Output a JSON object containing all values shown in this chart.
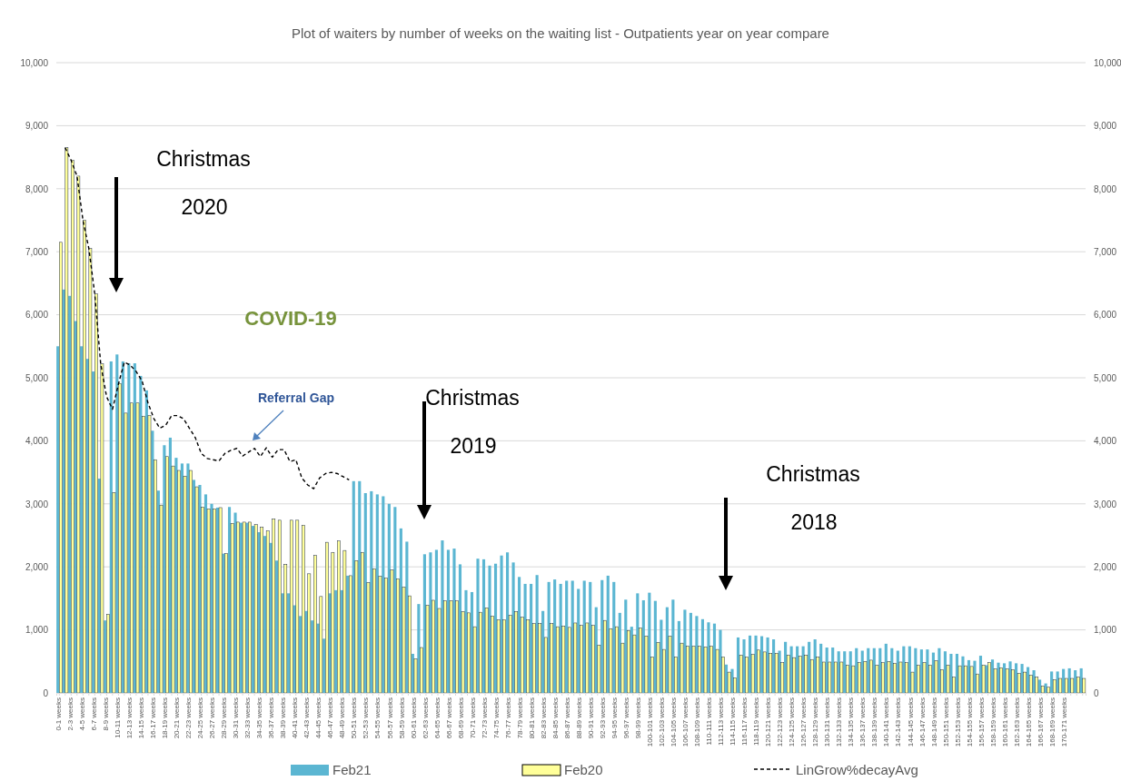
{
  "chart_data": {
    "type": "bar",
    "title": "Plot of waiters by number of weeks on the waiting list - Outpatients year on year compare",
    "categories": [
      "0-1 weeks",
      null,
      "2-3 weeks",
      null,
      "4-5 weeks",
      null,
      "6-7 weeks",
      null,
      "8-9 weeks",
      null,
      "10-11 weeks",
      null,
      "12-13 weeks",
      null,
      "14-15 weeks",
      null,
      "16-17 weeks",
      null,
      "18-19 weeks",
      null,
      "20-21 weeks",
      null,
      "22-23 weeks",
      null,
      "24-25 weeks",
      null,
      "26-27 weeks",
      null,
      "28-29 weeks",
      null,
      "30-31 weeks",
      null,
      "32-33 weeks",
      null,
      "34-35 weeks",
      null,
      "36-37 weeks",
      null,
      "38-39 weeks",
      null,
      "40-41 weeks",
      null,
      "42-43 weeks",
      null,
      "44-45 weeks",
      null,
      "46-47 weeks",
      null,
      "48-49 weeks",
      null,
      "50-51 weeks",
      null,
      "52-53 weeks",
      null,
      "54-55 weeks",
      null,
      "56-57 weeks",
      null,
      "58-59 weeks",
      null,
      "60-61 weeks",
      null,
      "62-63 weeks",
      null,
      "64-65 weeks",
      null,
      "66-67 weeks",
      null,
      "68-69 weeks",
      null,
      "70-71 weeks",
      null,
      "72-73 weeks",
      null,
      "74-75 weeks",
      null,
      "76-77 weeks",
      null,
      "78-79 weeks",
      null,
      "80-81 weeks",
      null,
      "82-83 weeks",
      null,
      "84-85 weeks",
      null,
      "86-87 weeks",
      null,
      "88-89 weeks",
      null,
      "90-91 weeks",
      null,
      "92-93 weeks",
      null,
      "94-95 weeks",
      null,
      "96-97 weeks",
      null,
      "98-99 weeks",
      null,
      "100-101 weeks",
      null,
      "102-103 weeks",
      null,
      "104-105 weeks",
      null,
      "106-107 weeks",
      null,
      "108-109 weeks",
      null,
      "110-111 weeks",
      null,
      "112-113 weeks",
      null,
      "114-115 weeks",
      null,
      "116-117 weeks",
      null,
      "118-119 weeks",
      null,
      "120-121 weeks",
      null,
      "122-123 weeks",
      null,
      "124-125 weeks",
      null,
      "126-127 weeks",
      null,
      "128-129 weeks",
      null,
      "130-131 weeks",
      null,
      "132-133 weeks",
      null,
      "134-135 weeks",
      null,
      "136-137 weeks",
      null,
      "138-139 weeks",
      null,
      "140-141 weeks",
      null,
      "142-143 weeks",
      null,
      "144-145 weeks",
      null,
      "146-147 weeks",
      null,
      "148-149 weeks",
      null,
      "150-151 weeks",
      null,
      "152-153 weeks",
      null,
      "154-155 weeks",
      null,
      "156-157 weeks",
      null,
      "158-159 weeks",
      null,
      "160-161 weeks",
      null,
      "162-163 weeks",
      null,
      "164-165 weeks",
      null,
      "166-167 weeks",
      null,
      "168-169 weeks",
      null,
      "170-171 weeks",
      null,
      null,
      null
    ],
    "series": [
      {
        "name": "Feb21",
        "color": "#5bb6d2",
        "values": [
          5500,
          6400,
          6300,
          5900,
          5500,
          5300,
          5100,
          3400,
          1150,
          5260,
          5370,
          5260,
          5230,
          5230,
          5030,
          4800,
          4160,
          3210,
          3930,
          4050,
          3730,
          3640,
          3640,
          3380,
          3300,
          3150,
          3000,
          2940,
          2210,
          2950,
          2860,
          2700,
          2700,
          2650,
          2550,
          2490,
          2380,
          2100,
          1580,
          1580,
          1390,
          1220,
          1300,
          1150,
          1100,
          860,
          1580,
          1630,
          1630,
          1860,
          3360,
          3360,
          3170,
          3200,
          3150,
          3120,
          3000,
          2950,
          2610,
          2400,
          620,
          1410,
          2200,
          2230,
          2270,
          2420,
          2270,
          2290,
          2040,
          1630,
          1600,
          2130,
          2120,
          2020,
          2050,
          2180,
          2230,
          2070,
          1840,
          1730,
          1730,
          1870,
          1300,
          1760,
          1800,
          1730,
          1780,
          1780,
          1650,
          1780,
          1760,
          1360,
          1790,
          1860,
          1760,
          1270,
          1480,
          1050,
          1580,
          1470,
          1590,
          1460,
          1160,
          1360,
          1480,
          1140,
          1320,
          1270,
          1220,
          1170,
          1120,
          1100,
          1000,
          450,
          380,
          880,
          850,
          910,
          910,
          900,
          880,
          850,
          670,
          810,
          740,
          740,
          740,
          810,
          850,
          780,
          720,
          720,
          660,
          660,
          660,
          710,
          670,
          710,
          710,
          710,
          780,
          710,
          670,
          740,
          740,
          710,
          690,
          690,
          640,
          710,
          660,
          620,
          620,
          580,
          520,
          510,
          590,
          440,
          530,
          480,
          470,
          500,
          470,
          460,
          410,
          360,
          210,
          150,
          340,
          340,
          380,
          390,
          360,
          390
        ]
      },
      {
        "name": "Feb20",
        "color": "#ffff99",
        "values": [
          7150,
          8650,
          8450,
          8200,
          7500,
          7050,
          6330,
          5220,
          1250,
          3180,
          4910,
          4440,
          4600,
          4600,
          4390,
          4400,
          3700,
          2980,
          3750,
          3600,
          3530,
          3440,
          3530,
          3270,
          2950,
          2920,
          2920,
          2940,
          2210,
          2690,
          2710,
          2710,
          2710,
          2670,
          2630,
          2570,
          2760,
          2740,
          2040,
          2740,
          2740,
          2660,
          1890,
          2180,
          1530,
          2390,
          2230,
          2410,
          2260,
          1860,
          2100,
          2230,
          1750,
          1970,
          1850,
          1820,
          1950,
          1810,
          1680,
          1540,
          540,
          720,
          1390,
          1470,
          1340,
          1460,
          1460,
          1460,
          1290,
          1270,
          1050,
          1280,
          1350,
          1220,
          1160,
          1160,
          1230,
          1290,
          1200,
          1160,
          1100,
          1100,
          880,
          1100,
          1050,
          1060,
          1040,
          1110,
          1070,
          1110,
          1070,
          760,
          1150,
          1020,
          1050,
          790,
          990,
          920,
          1030,
          900,
          570,
          800,
          690,
          900,
          570,
          790,
          740,
          740,
          740,
          730,
          740,
          690,
          570,
          330,
          240,
          600,
          570,
          610,
          680,
          650,
          630,
          630,
          480,
          600,
          560,
          580,
          600,
          530,
          570,
          490,
          490,
          490,
          490,
          440,
          430,
          480,
          500,
          520,
          440,
          480,
          500,
          470,
          490,
          480,
          330,
          440,
          480,
          440,
          510,
          370,
          440,
          250,
          430,
          430,
          420,
          300,
          440,
          480,
          380,
          400,
          380,
          370,
          310,
          330,
          280,
          250,
          110,
          90,
          210,
          230,
          230,
          230,
          250,
          230
        ]
      },
      {
        "name": "LinGrow%decayAvg",
        "type": "line",
        "color": "#000000",
        "line_style": "dashed",
        "values": [
          null,
          8650,
          8450,
          8200,
          7500,
          7050,
          6330,
          5220,
          4700,
          4500,
          4900,
          5250,
          5200,
          5100,
          4950,
          4600,
          4350,
          4200,
          4250,
          4400,
          4400,
          4350,
          4200,
          4050,
          3800,
          3720,
          3700,
          3680,
          3800,
          3850,
          3880,
          3760,
          3820,
          3880,
          3750,
          3890,
          3740,
          3860,
          3860,
          3670,
          3700,
          3410,
          3300,
          3240,
          3410,
          3480,
          3500,
          3480,
          3430,
          3380,
          null,
          null,
          null,
          null,
          null,
          null,
          null,
          null,
          null,
          null,
          null,
          null,
          null,
          null,
          null,
          null,
          null,
          null,
          null,
          null,
          null,
          null,
          null,
          null,
          null,
          null,
          null,
          null,
          null,
          null,
          null,
          null,
          null,
          null,
          null,
          null,
          null,
          null,
          null,
          null,
          null,
          null,
          null,
          null,
          null,
          null,
          null,
          null,
          null,
          null,
          null,
          null,
          null,
          null,
          null,
          null,
          null,
          null,
          null,
          null,
          null,
          null,
          null,
          null,
          null,
          null,
          null,
          null,
          null,
          null,
          null,
          null,
          null,
          null,
          null,
          null,
          null,
          null,
          null,
          null,
          null,
          null,
          null,
          null,
          null,
          null,
          null,
          null,
          null,
          null,
          null,
          null,
          null,
          null,
          null,
          null,
          null,
          null,
          null,
          null,
          null,
          null,
          null,
          null,
          null,
          null,
          null,
          null,
          null,
          null,
          null,
          null,
          null,
          null,
          null,
          null,
          null,
          null,
          null,
          null,
          null,
          null,
          null,
          null
        ]
      }
    ],
    "ylim": [
      0,
      10000
    ],
    "yticks": [
      0,
      {
        "value": 1000,
        "label": "1,000"
      },
      {
        "value": 2000,
        "label": "2,000"
      },
      {
        "value": 3000,
        "label": "3,000"
      },
      {
        "value": 4000,
        "label": "4,000"
      },
      {
        "value": 5000,
        "label": "5,000"
      },
      {
        "value": 6000,
        "label": "6,000"
      },
      {
        "value": 7000,
        "label": "7,000"
      },
      {
        "value": 8000,
        "label": "8,000"
      },
      {
        "value": 9000,
        "label": "9,000"
      },
      {
        "value": 10000,
        "label": "10,000"
      }
    ],
    "y2lim": [
      0,
      10000
    ],
    "y2ticks": [
      0,
      {
        "value": 1000,
        "label": "1,000"
      },
      {
        "value": 2000,
        "label": "2,000"
      },
      {
        "value": 3000,
        "label": "3,000"
      },
      {
        "value": 4000,
        "label": "4,000"
      },
      {
        "value": 5000,
        "label": "5,000"
      },
      {
        "value": 6000,
        "label": "6,000"
      },
      {
        "value": 7000,
        "label": "7,000"
      },
      {
        "value": 8000,
        "label": "8,000"
      },
      {
        "value": 9000,
        "label": "9,000"
      },
      {
        "value": 10000,
        "label": "10,000"
      }
    ],
    "grid": "y",
    "legend": "bottom",
    "annotations": [
      "Christmas 2020",
      "Christmas 2019",
      "Christmas 2018",
      "Referral Gap",
      "COVID-19"
    ]
  }
}
